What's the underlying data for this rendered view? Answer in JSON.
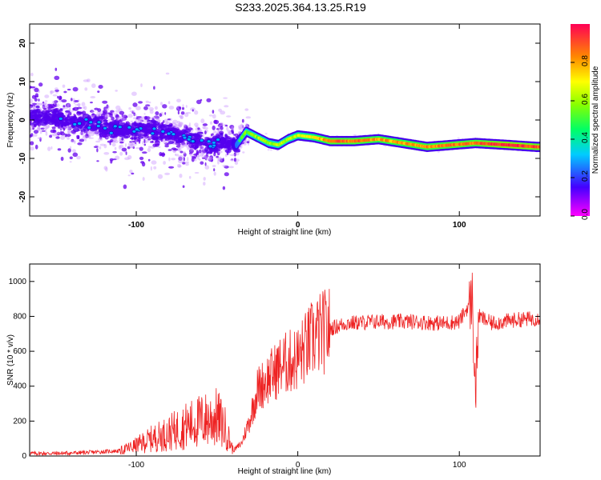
{
  "title": "S233.2025.364.13.25.R19",
  "chart_data": [
    {
      "type": "heatmap",
      "title": "",
      "xlabel": "Height of straight line (km)",
      "ylabel": "Frequency (Hz)",
      "xlim": [
        -166,
        150
      ],
      "ylim": [
        -25,
        25
      ],
      "xticks": [
        -100,
        0,
        100
      ],
      "xtick_labels": [
        "-100",
        "0",
        "100"
      ],
      "yticks": [
        -20,
        -10,
        0,
        10,
        20
      ],
      "ytick_labels": [
        "-20",
        "-10",
        "0",
        "10",
        "20"
      ],
      "colorbar": {
        "label": "Normalized spectral amplitude",
        "range": [
          0,
          1
        ],
        "ticks": [
          0.0,
          0.2,
          0.4,
          0.6,
          0.8
        ],
        "tick_labels": [
          "0.0",
          "0.2",
          "0.4",
          "0.6",
          "0.8"
        ]
      },
      "ridge": {
        "x": [
          -166,
          -150,
          -130,
          -110,
          -90,
          -70,
          -55,
          -45,
          -38,
          -32,
          -25,
          -18,
          -12,
          -6,
          0,
          10,
          20,
          35,
          50,
          65,
          80,
          95,
          110,
          130,
          148
        ],
        "y": [
          1.5,
          0.5,
          -1.0,
          -2.5,
          -2.5,
          -4.5,
          -6.5,
          -5.5,
          -6.5,
          -3.0,
          -4.5,
          -6.0,
          -6.5,
          -5.0,
          -4.0,
          -4.5,
          -5.5,
          -5.5,
          -5.0,
          -6.0,
          -7.0,
          -6.5,
          -6.0,
          -6.5,
          -7.0
        ],
        "amplitude": [
          0.25,
          0.25,
          0.25,
          0.25,
          0.25,
          0.28,
          0.28,
          0.28,
          0.4,
          0.55,
          0.6,
          0.6,
          0.6,
          0.62,
          0.65,
          0.7,
          0.85,
          0.85,
          0.8,
          0.8,
          0.82,
          0.85,
          0.85,
          0.95,
          0.9
        ]
      }
    },
    {
      "type": "line",
      "title": "",
      "xlabel": "Height of straight line (km)",
      "ylabel": "SNR (10 * v/v)",
      "xlim": [
        -166,
        150
      ],
      "ylim": [
        0,
        1100
      ],
      "xticks": [
        -100,
        0,
        100
      ],
      "xtick_labels": [
        "-100",
        "0",
        "100"
      ],
      "yticks": [
        0,
        200,
        400,
        600,
        800,
        1000
      ],
      "ytick_labels": [
        "0",
        "200",
        "400",
        "600",
        "800",
        "1000"
      ],
      "series": [
        {
          "name": "SNR",
          "color": "#ee2222",
          "x": [
            -166,
            -150,
            -130,
            -110,
            -100,
            -90,
            -80,
            -70,
            -60,
            -50,
            -45,
            -40,
            -35,
            -30,
            -25,
            -20,
            -10,
            0,
            10,
            20,
            30,
            50,
            70,
            90,
            100,
            108,
            110,
            112,
            120,
            135,
            150
          ],
          "y": [
            15,
            15,
            20,
            30,
            60,
            100,
            130,
            170,
            200,
            220,
            160,
            30,
            70,
            200,
            380,
            430,
            520,
            560,
            680,
            730,
            760,
            770,
            770,
            760,
            770,
            900,
            350,
            800,
            760,
            780,
            790
          ]
        }
      ]
    }
  ],
  "colors": {
    "snr_line": "#ee2222",
    "background_specks": "#cc99ff",
    "speck_dark": "#6600ee"
  }
}
